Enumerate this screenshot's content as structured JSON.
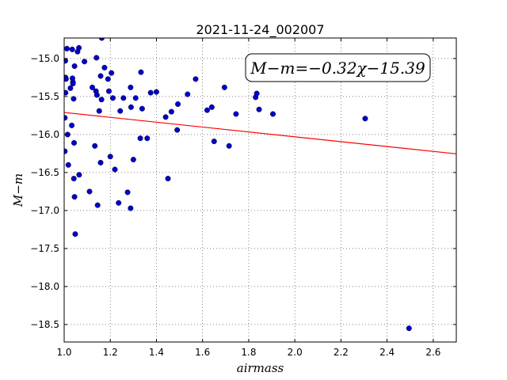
{
  "chart_data": {
    "type": "scatter",
    "title": "2021-11-24_002007",
    "xlabel": "airmass",
    "ylabel": "M−m",
    "xlim": [
      1.0,
      2.7
    ],
    "ylim": [
      -18.73,
      -14.73
    ],
    "y_inverted": true,
    "grid": true,
    "x_ticks": [
      "1.0",
      "1.2",
      "1.4",
      "1.6",
      "1.8",
      "2.0",
      "2.2",
      "2.4",
      "2.6"
    ],
    "x_tick_values": [
      1.0,
      1.2,
      1.4,
      1.6,
      1.8,
      2.0,
      2.2,
      2.4,
      2.6
    ],
    "y_ticks": [
      "−15.0",
      "−15.5",
      "−16.0",
      "−16.5",
      "−17.0",
      "−17.5",
      "−18.0",
      "−18.5"
    ],
    "y_tick_values": [
      -15.0,
      -15.5,
      -16.0,
      -16.5,
      -17.0,
      -17.5,
      -18.0,
      -18.5
    ],
    "annotation": "M−m=−0.32χ−15.39",
    "annotation_position": "top-right",
    "fit_line": {
      "slope": -0.32,
      "intercept": -15.39,
      "color": "#ff0000"
    },
    "point_color": "#0000cc",
    "series": [
      {
        "points": [
          [
            1.003,
            -15.78
          ],
          [
            1.005,
            -15.03
          ],
          [
            1.006,
            -15.25
          ],
          [
            1.008,
            -15.27
          ],
          [
            1.006,
            -15.45
          ],
          [
            1.003,
            -16.22
          ],
          [
            1.012,
            -14.87
          ],
          [
            1.015,
            -16.0
          ],
          [
            1.018,
            -16.4
          ],
          [
            1.027,
            -15.39
          ],
          [
            1.035,
            -14.88
          ],
          [
            1.033,
            -15.88
          ],
          [
            1.036,
            -15.26
          ],
          [
            1.038,
            -15.31
          ],
          [
            1.038,
            -15.33
          ],
          [
            1.041,
            -15.53
          ],
          [
            1.043,
            -16.11
          ],
          [
            1.042,
            -16.58
          ],
          [
            1.045,
            -15.1
          ],
          [
            1.045,
            -16.82
          ],
          [
            1.048,
            -17.31
          ],
          [
            1.058,
            -14.91
          ],
          [
            1.064,
            -14.86
          ],
          [
            1.065,
            -16.53
          ],
          [
            1.088,
            -15.04
          ],
          [
            1.11,
            -16.75
          ],
          [
            1.122,
            -15.38
          ],
          [
            1.133,
            -16.15
          ],
          [
            1.138,
            -15.43
          ],
          [
            1.14,
            -14.99
          ],
          [
            1.142,
            -15.48
          ],
          [
            1.145,
            -16.93
          ],
          [
            1.152,
            -15.69
          ],
          [
            1.158,
            -15.23
          ],
          [
            1.158,
            -16.37
          ],
          [
            1.163,
            -14.73
          ],
          [
            1.162,
            -15.54
          ],
          [
            1.175,
            -15.12
          ],
          [
            1.19,
            -15.27
          ],
          [
            1.194,
            -15.43
          ],
          [
            1.2,
            -16.29
          ],
          [
            1.205,
            -15.19
          ],
          [
            1.211,
            -15.52
          ],
          [
            1.22,
            -16.46
          ],
          [
            1.236,
            -16.9
          ],
          [
            1.243,
            -15.69
          ],
          [
            1.257,
            -15.52
          ],
          [
            1.275,
            -16.76
          ],
          [
            1.288,
            -16.97
          ],
          [
            1.288,
            -15.38
          ],
          [
            1.29,
            -15.64
          ],
          [
            1.3,
            -16.33
          ],
          [
            1.31,
            -15.52
          ],
          [
            1.33,
            -16.05
          ],
          [
            1.333,
            -15.18
          ],
          [
            1.338,
            -15.66
          ],
          [
            1.36,
            -16.05
          ],
          [
            1.375,
            -15.45
          ],
          [
            1.4,
            -15.44
          ],
          [
            1.44,
            -15.77
          ],
          [
            1.45,
            -16.58
          ],
          [
            1.465,
            -15.7
          ],
          [
            1.49,
            -15.94
          ],
          [
            1.493,
            -15.6
          ],
          [
            1.535,
            -15.47
          ],
          [
            1.57,
            -15.27
          ],
          [
            1.62,
            -15.68
          ],
          [
            1.64,
            -15.64
          ],
          [
            1.65,
            -16.09
          ],
          [
            1.695,
            -15.38
          ],
          [
            1.715,
            -16.15
          ],
          [
            1.745,
            -15.73
          ],
          [
            1.83,
            -15.51
          ],
          [
            1.835,
            -15.46
          ],
          [
            1.845,
            -15.67
          ],
          [
            1.905,
            -15.73
          ],
          [
            2.305,
            -15.79
          ],
          [
            2.495,
            -18.55
          ]
        ]
      }
    ]
  }
}
